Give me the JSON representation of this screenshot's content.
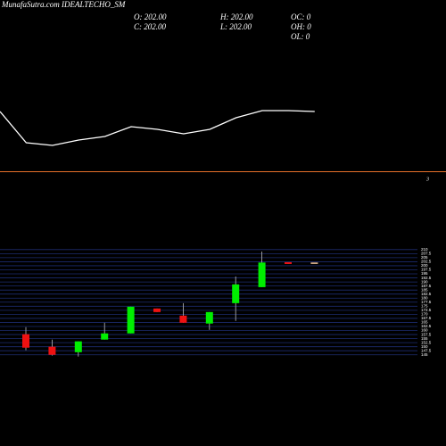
{
  "header": {
    "title": "MunafaSutra.com IDEALTECHO_SM",
    "stats": [
      "O: 202.00",
      "C: 202.00",
      "H: 202.00",
      "L: 202.00",
      "OC: 0",
      "OH: 0",
      "OL: 0"
    ]
  },
  "chart_data": [
    {
      "type": "line",
      "color": "#ffffff",
      "values": [
        45,
        10,
        7,
        13,
        17,
        28,
        25,
        20,
        25,
        38,
        46,
        46,
        45
      ],
      "ylim": [
        0,
        60
      ],
      "annotation": "3",
      "reference_color": "#e8702a"
    },
    {
      "type": "candlestick",
      "open": [
        157.7,
        150,
        146.6,
        154.4,
        158.2,
        173.6,
        169.2,
        164.3,
        176.9,
        186.8,
        202.2,
        202
      ],
      "high": [
        162.1,
        154.4,
        153.3,
        164.8,
        174.7,
        173.6,
        176.9,
        171.4,
        193.4,
        208.8,
        202.2,
        202
      ],
      "low": [
        147.8,
        144.5,
        143.9,
        154.4,
        158.2,
        171.4,
        164.8,
        160.4,
        165.9,
        186.8,
        201.1,
        202
      ],
      "close": [
        149.4,
        145,
        153.3,
        158.2,
        174.7,
        171.4,
        164.8,
        171.4,
        188.5,
        202,
        201.1,
        202
      ],
      "up_color": "#00ee00",
      "down_color": "#ee1111",
      "flat_color": "#f5c89a",
      "ylim": [
        141,
        211
      ],
      "yticks": [
        145,
        147.5,
        150,
        152.5,
        155,
        157.5,
        160,
        162.5,
        165,
        167.5,
        170,
        172.5,
        175,
        177.5,
        180,
        182.5,
        185,
        187.5,
        190,
        192.5,
        195,
        197.5,
        200,
        202.5,
        205,
        207.5,
        210
      ],
      "grid": true,
      "grid_color": "#1c2c70"
    }
  ]
}
